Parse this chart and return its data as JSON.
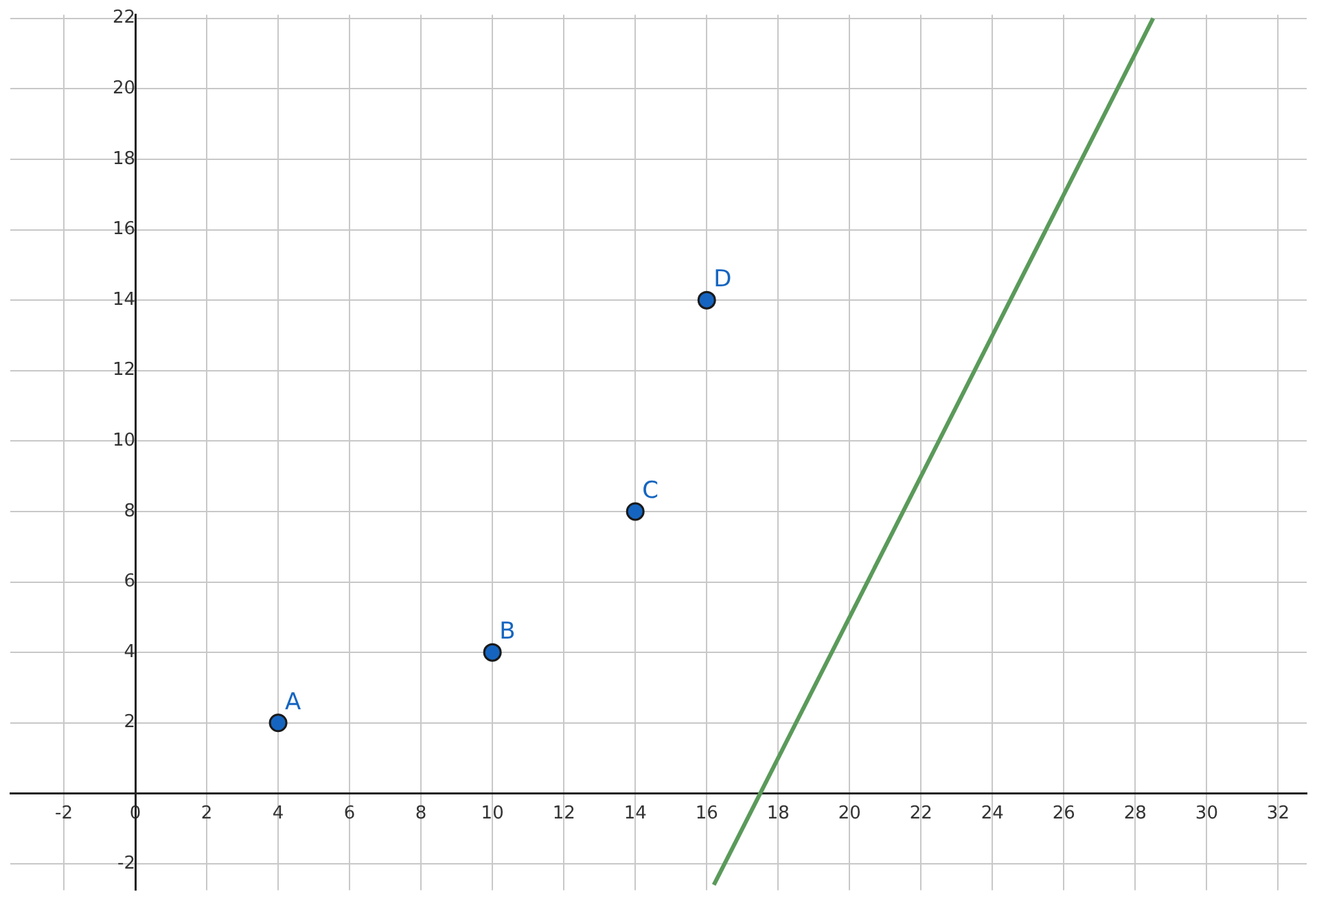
{
  "chart_data": {
    "type": "scatter",
    "xlim": [
      -3.5,
      32.8
    ],
    "ylim": [
      -2.75,
      22.1
    ],
    "xticks": [
      -2,
      0,
      2,
      4,
      6,
      8,
      10,
      12,
      14,
      16,
      18,
      20,
      22,
      24,
      26,
      28,
      30,
      32
    ],
    "yticks": [
      -2,
      {
        "value": 0,
        "label": null
      },
      2,
      4,
      6,
      8,
      10,
      12,
      14,
      16,
      18,
      20,
      22
    ],
    "grid": true,
    "series": [
      {
        "marker": "circle",
        "color": "#1565c0",
        "x": [
          4,
          10,
          14,
          16
        ],
        "values": [
          2,
          4,
          8,
          14
        ]
      },
      {
        "type": "line",
        "color": "#5a9a5a",
        "x": [
          16.2,
          28.5
        ],
        "values": [
          -2.6,
          22
        ]
      }
    ],
    "annotations": [
      {
        "text": "A",
        "x": 4,
        "y": 2
      },
      {
        "text": "B",
        "x": 10,
        "y": 4
      },
      {
        "text": "C",
        "x": 14,
        "y": 8
      },
      {
        "text": "D",
        "x": 16,
        "y": 14
      }
    ]
  }
}
